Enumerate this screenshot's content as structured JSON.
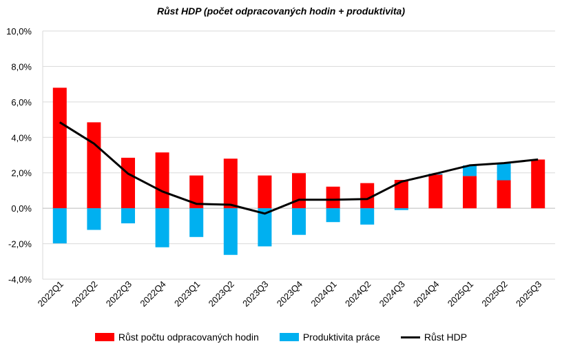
{
  "chart_data": {
    "type": "bar",
    "title": "Růst HDP (počet odpracovaných hodin + produktivita)",
    "categories": [
      "2022Q1",
      "2022Q2",
      "2022Q3",
      "2022Q4",
      "2023Q1",
      "2023Q2",
      "2023Q3",
      "2023Q4",
      "2024Q1",
      "2024Q2",
      "2024Q3",
      "2024Q4",
      "2025Q1",
      "2025Q2",
      "2025Q3"
    ],
    "series": [
      {
        "name": "Růst počtu odpracovaných hodin",
        "kind": "stacked-bar",
        "color": "#ff0000",
        "values": [
          6.8,
          4.85,
          2.85,
          3.15,
          1.85,
          2.8,
          1.85,
          1.98,
          1.22,
          1.42,
          1.6,
          1.9,
          1.82,
          1.58,
          2.75
        ]
      },
      {
        "name": "Produktivita práce",
        "kind": "stacked-bar",
        "color": "#00b0f0",
        "values": [
          -1.98,
          -1.22,
          -0.85,
          -2.2,
          -1.62,
          -2.63,
          -2.15,
          -1.5,
          -0.78,
          -0.92,
          -0.1,
          0.05,
          0.6,
          0.98,
          0.0
        ]
      },
      {
        "name": "Růst HDP",
        "kind": "line",
        "color": "#000000",
        "values": [
          4.85,
          3.65,
          1.95,
          0.95,
          0.25,
          0.2,
          -0.3,
          0.48,
          0.48,
          0.52,
          1.5,
          1.95,
          2.42,
          2.55,
          2.75
        ]
      }
    ],
    "ylim": [
      -4,
      10
    ],
    "yticks": [
      "-4,0%",
      "-2,0%",
      "0,0%",
      "2,0%",
      "4,0%",
      "6,0%",
      "8,0%",
      "10,0%"
    ],
    "grid": true,
    "legend_position": "bottom"
  }
}
